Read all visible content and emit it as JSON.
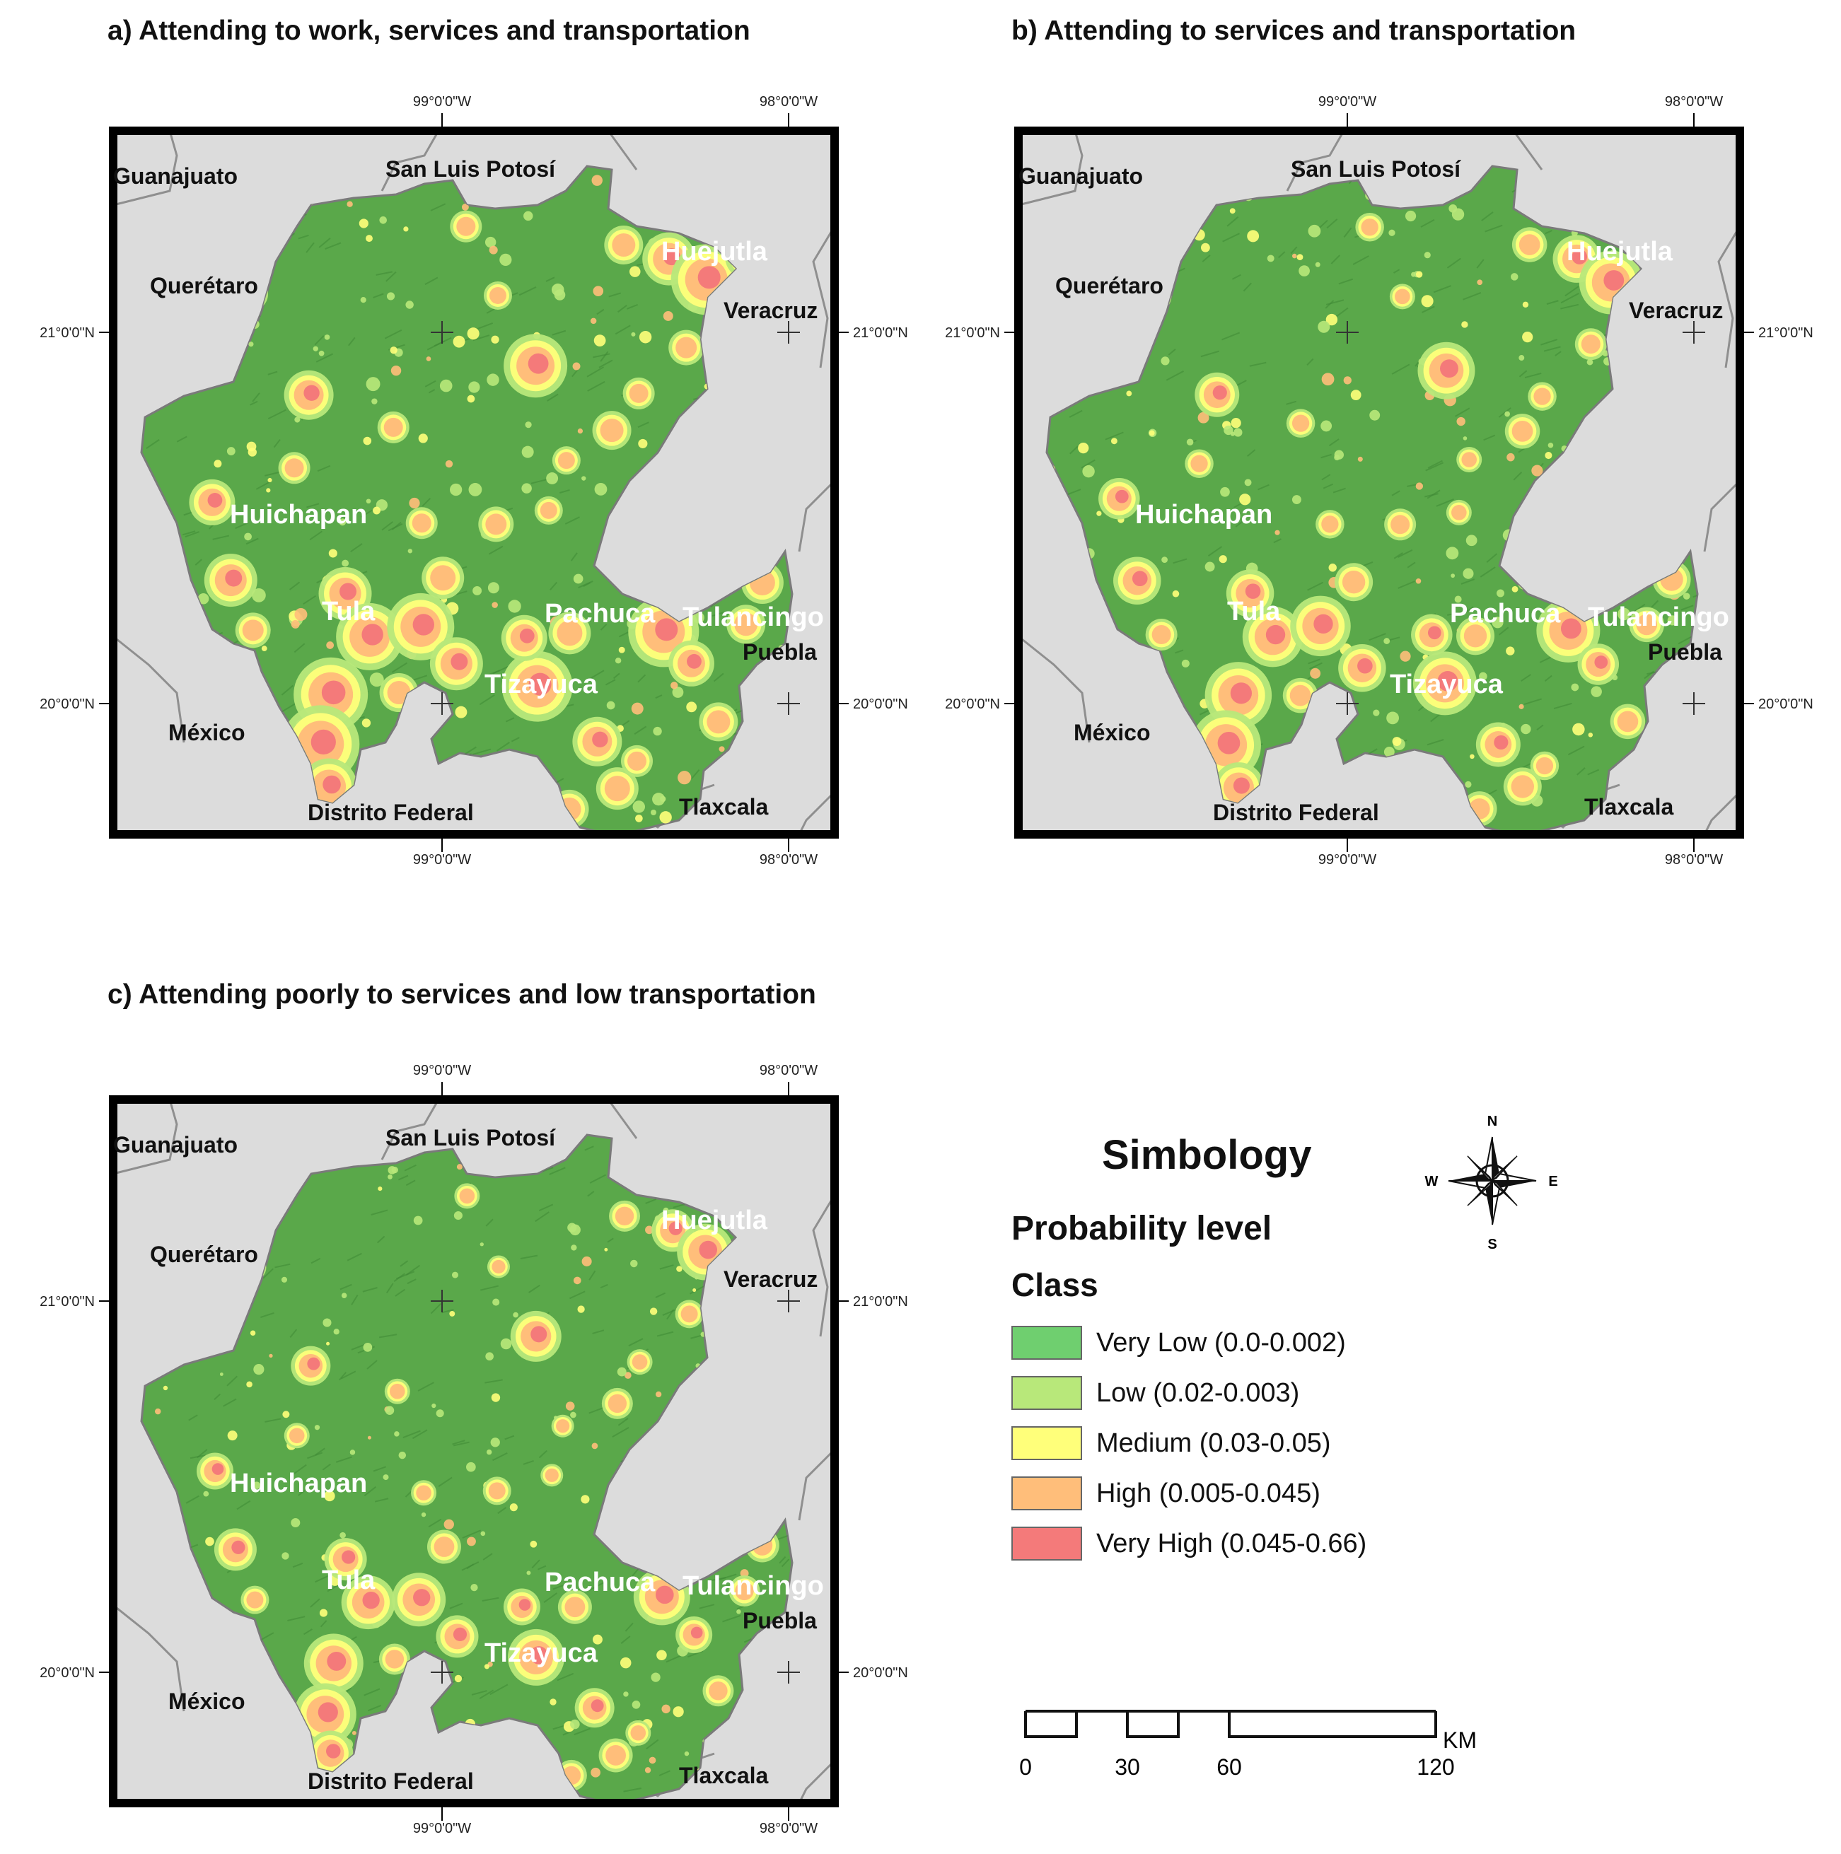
{
  "panels": [
    {
      "id": "a",
      "title": "a) Attending to work, services and transportation"
    },
    {
      "id": "b",
      "title": "b) Attending to services and transportation"
    },
    {
      "id": "c",
      "title": "c) Attending poorly to services and low transportation"
    }
  ],
  "graticule": {
    "lon_west": "99°0'0\"W",
    "lon_east": "98°0'0\"W",
    "lat_north": "21°0'0\"N",
    "lat_south": "20°0'0\"N"
  },
  "places": {
    "states": [
      "Guanajuato",
      "San Luis Potosí",
      "Querétaro",
      "Veracruz",
      "Puebla",
      "México",
      "Distrito Federal",
      "Tlaxcala"
    ],
    "cities": [
      "Huejutla",
      "Huichapan",
      "Tula",
      "Pachuca",
      "Tulancingo",
      "Tizayuca"
    ]
  },
  "legend": {
    "title": "Simbology",
    "subtitle": "Probability level",
    "class_heading": "Class",
    "classes": [
      {
        "label": "Very Low (0.0-0.002)",
        "color": "#6fcf6f"
      },
      {
        "label": "Low (0.02-0.003)",
        "color": "#b8e87a"
      },
      {
        "label": "Medium (0.03-0.05)",
        "color": "#ffff7a"
      },
      {
        "label": "High (0.005-0.045)",
        "color": "#ffbe7a"
      },
      {
        "label": "Very High (0.045-0.66)",
        "color": "#f47a7a"
      }
    ]
  },
  "compass": {
    "n": "N",
    "s": "S",
    "e": "E",
    "w": "W"
  },
  "scale": {
    "ticks": [
      "0",
      "30",
      "60",
      "120"
    ],
    "unit": "KM"
  },
  "colors": {
    "land_base": "#5aa84a",
    "outside": "#dcdcdc",
    "border": "#888888"
  }
}
